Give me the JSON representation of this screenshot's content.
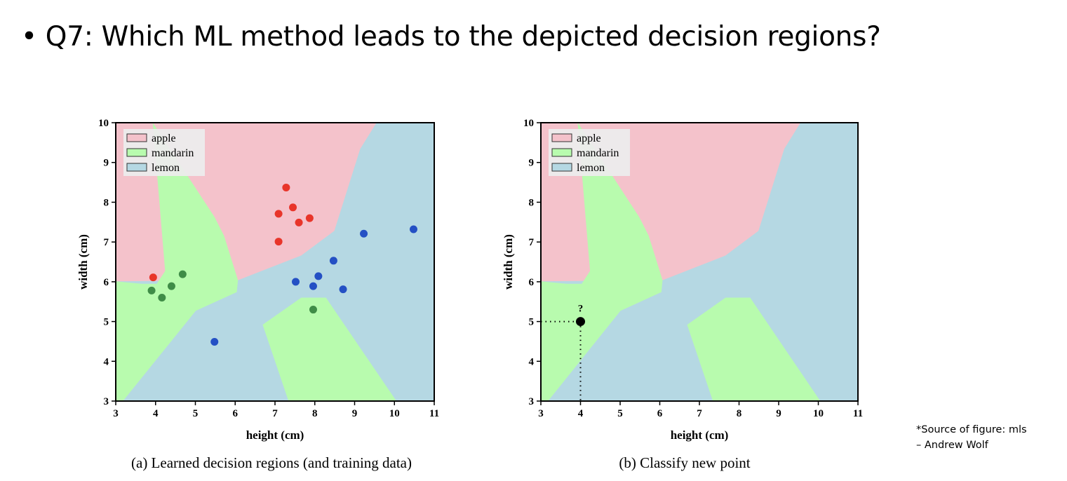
{
  "slide": {
    "title": "• Q7: Which ML method leads to the depicted decision regions?",
    "source_line1": "*Source of figure: mls",
    "source_line2": "– Andrew Wolf"
  },
  "colors": {
    "apple_region": "#F4C2CB",
    "mandarin_region": "#B8FBAE",
    "lemon_region": "#B5D8E3",
    "apple_point": "#E8352A",
    "mandarin_point": "#3F8C47",
    "lemon_point": "#2450C4",
    "query_point": "#000000"
  },
  "chart_data": [
    {
      "type": "scatter",
      "caption": "(a) Learned decision regions (and training data)",
      "xlabel": "height (cm)",
      "ylabel": "width (cm)",
      "xlim": [
        3,
        11
      ],
      "ylim": [
        3,
        10
      ],
      "xticks": [
        "3",
        "4",
        "5",
        "6",
        "7",
        "8",
        "9",
        "10",
        "11"
      ],
      "yticks": [
        "3",
        "4",
        "5",
        "6",
        "7",
        "8",
        "9",
        "10"
      ],
      "grid": false,
      "legend": {
        "placement": "top-left",
        "entries": [
          "apple",
          "mandarin",
          "lemon"
        ]
      },
      "regions": {
        "apple": [
          [
            3,
            10
          ],
          [
            9.55,
            10
          ],
          [
            9.14,
            9.34
          ],
          [
            8.49,
            7.28
          ],
          [
            7.66,
            6.66
          ],
          [
            6.07,
            6.04
          ],
          [
            3,
            6.01
          ]
        ],
        "mandarin": [
          [
            [
              3.93,
              10
            ],
            [
              4.24,
              6.27
            ],
            [
              4.03,
              5.95
            ],
            [
              3.65,
              5.95
            ],
            [
              3,
              6.01
            ],
            [
              3,
              3
            ],
            [
              3.18,
              3
            ],
            [
              5.01,
              5.27
            ],
            [
              6.04,
              5.74
            ],
            [
              6.07,
              6.04
            ],
            [
              5.72,
              7.16
            ],
            [
              5.48,
              7.63
            ]
          ],
          [
            [
              6.69,
              4.92
            ],
            [
              7.66,
              5.6
            ],
            [
              8.28,
              5.6
            ],
            [
              10.05,
              3
            ],
            [
              7.34,
              3
            ]
          ]
        ]
      },
      "series": [
        {
          "name": "apple",
          "points": [
            [
              3.94,
              6.11
            ],
            [
              7.28,
              8.37
            ],
            [
              7.45,
              7.87
            ],
            [
              7.09,
              7.71
            ],
            [
              7.87,
              7.6
            ],
            [
              7.6,
              7.49
            ],
            [
              7.09,
              7.01
            ]
          ]
        },
        {
          "name": "mandarin",
          "points": [
            [
              3.9,
              5.78
            ],
            [
              4.16,
              5.6
            ],
            [
              4.4,
              5.89
            ],
            [
              4.68,
              6.19
            ],
            [
              7.96,
              5.3
            ]
          ]
        },
        {
          "name": "lemon",
          "points": [
            [
              5.48,
              4.49
            ],
            [
              7.52,
              6.0
            ],
            [
              7.96,
              5.89
            ],
            [
              8.09,
              6.14
            ],
            [
              8.47,
              6.53
            ],
            [
              8.71,
              5.81
            ],
            [
              9.23,
              7.21
            ],
            [
              10.48,
              7.32
            ]
          ]
        }
      ]
    },
    {
      "type": "scatter",
      "caption": "(b) Classify new point",
      "xlabel": "height (cm)",
      "ylabel": "width (cm)",
      "xlim": [
        3,
        11
      ],
      "ylim": [
        3,
        10
      ],
      "xticks": [
        "3",
        "4",
        "5",
        "6",
        "7",
        "8",
        "9",
        "10",
        "11"
      ],
      "yticks": [
        "3",
        "4",
        "5",
        "6",
        "7",
        "8",
        "9",
        "10"
      ],
      "grid": false,
      "legend": {
        "placement": "top-left",
        "entries": [
          "apple",
          "mandarin",
          "lemon"
        ]
      },
      "regions": {
        "apple": [
          [
            3,
            10
          ],
          [
            9.55,
            10
          ],
          [
            9.14,
            9.34
          ],
          [
            8.49,
            7.28
          ],
          [
            7.66,
            6.66
          ],
          [
            6.07,
            6.04
          ],
          [
            3,
            6.01
          ]
        ],
        "mandarin": [
          [
            [
              3.93,
              10
            ],
            [
              4.24,
              6.27
            ],
            [
              4.03,
              5.95
            ],
            [
              3.65,
              5.95
            ],
            [
              3,
              6.01
            ],
            [
              3,
              3
            ],
            [
              3.18,
              3
            ],
            [
              5.01,
              5.27
            ],
            [
              6.04,
              5.74
            ],
            [
              6.07,
              6.04
            ],
            [
              5.72,
              7.16
            ],
            [
              5.48,
              7.63
            ]
          ],
          [
            [
              6.69,
              4.92
            ],
            [
              7.66,
              5.6
            ],
            [
              8.28,
              5.6
            ],
            [
              10.05,
              3
            ],
            [
              7.34,
              3
            ]
          ]
        ]
      },
      "query_point": {
        "x": 4,
        "y": 5,
        "label": "?"
      },
      "series": []
    }
  ]
}
